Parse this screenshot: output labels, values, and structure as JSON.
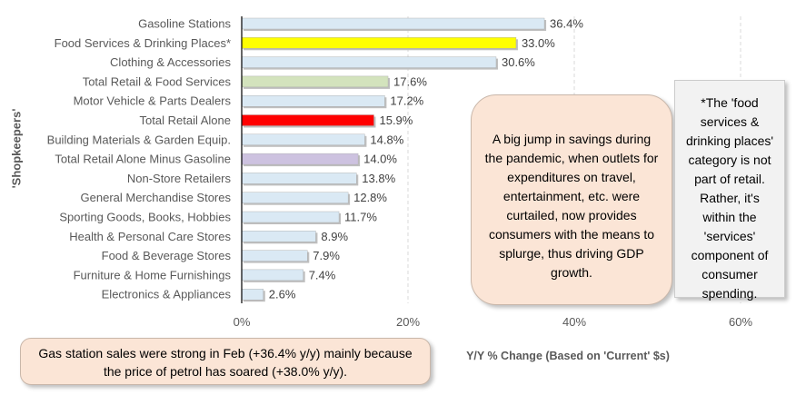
{
  "chart_data": {
    "type": "bar",
    "orientation": "horizontal",
    "categories": [
      "Gasoline Stations",
      "Food Services & Drinking Places*",
      "Clothing & Accessories",
      "Total Retail & Food Services",
      "Motor Vehicle & Parts Dealers",
      "Total Retail Alone",
      "Building Materials & Garden Equip.",
      "Total Retail Alone Minus Gasoline",
      "Non-Store Retailers",
      "General Merchandise Stores",
      "Sporting Goods, Books, Hobbies",
      "Health & Personal Care Stores",
      "Food & Beverage Stores",
      "Furniture & Home Furnishings",
      "Electronics & Appliances"
    ],
    "values": [
      36.4,
      33.0,
      30.6,
      17.6,
      17.2,
      15.9,
      14.8,
      14.0,
      13.8,
      12.8,
      11.7,
      8.9,
      7.9,
      7.4,
      2.6
    ],
    "data_labels": [
      "36.4%",
      "33.0%",
      "30.6%",
      "17.6%",
      "17.2%",
      "15.9%",
      "14.8%",
      "14.0%",
      "13.8%",
      "12.8%",
      "11.7%",
      "8.9%",
      "7.9%",
      "7.4%",
      "2.6%"
    ],
    "bar_colors": [
      "#dae9f4",
      "#ffff00",
      "#dae9f4",
      "#d3e3bd",
      "#dae9f4",
      "#ff0000",
      "#dae9f4",
      "#cdc2e0",
      "#dae9f4",
      "#dae9f4",
      "#dae9f4",
      "#dae9f4",
      "#dae9f4",
      "#dae9f4",
      "#dae9f4"
    ],
    "xlim": [
      0,
      60
    ],
    "xticks": [
      "0%",
      "20%",
      "40%",
      "60%"
    ],
    "xlabel": "Y/Y % Change (Based  on 'Current' $s)",
    "ylabel": "'Shopkeepers'",
    "grid": "vertical dashed"
  },
  "annotations": {
    "savings_note": "A big jump in savings during the pandemic, when outlets for expenditures on travel, entertainment, etc. were curtailed, now provides consumers with the means to splurge, thus driving GDP growth.",
    "food_note": "*The 'food services & drinking places' category is not part of retail. Rather, it's within the 'services' component of consumer spending.",
    "gas_note": "Gas station sales were strong in Feb (+36.4% y/y) mainly because the price of petrol has soared (+38.0% y/y)."
  }
}
